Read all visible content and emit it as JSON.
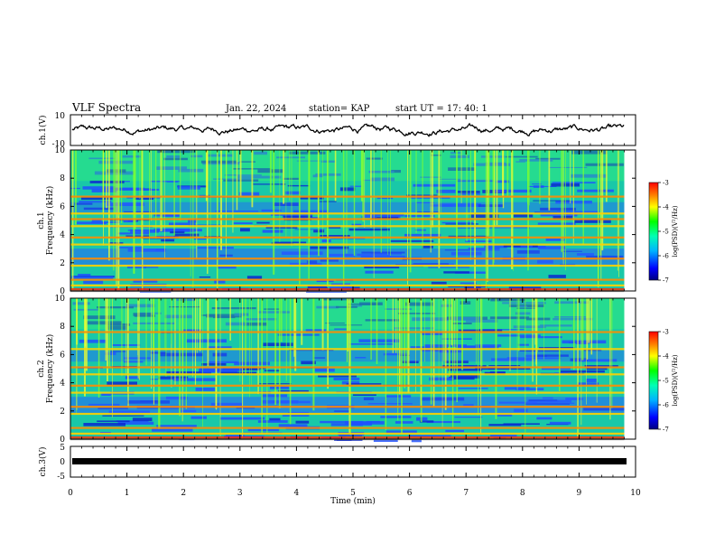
{
  "header": {
    "title": "VLF Spectra",
    "date": "Jan. 22, 2024",
    "station": "station= KAP",
    "start_time": "start  UT  =   17: 40: 1"
  },
  "chart_data": [
    {
      "type": "line",
      "panel": "ch1-waveform",
      "ylabel": "ch.1(V)",
      "ylim": [
        -10,
        10
      ],
      "yticks": [
        "10",
        "-10"
      ],
      "x_range_min": [
        0,
        9.8
      ],
      "line_color": "#000000",
      "approx_mean_v": 0.3,
      "approx_amplitude_v": 4
    },
    {
      "type": "heatmap",
      "panel": "ch1-spectrogram",
      "ylabel": "ch.1\nFrequency (kHz)",
      "ylim": [
        0,
        10
      ],
      "yticks": [
        "0",
        "2",
        "4",
        "6",
        "8",
        "10"
      ],
      "x_range_min": [
        0,
        9.8
      ],
      "colorbar": {
        "label": "log(PSD)(V²/Hz)",
        "range": [
          -7,
          -3
        ],
        "ticks": [
          "-3",
          "-4",
          "-5",
          "-6",
          "-7"
        ]
      },
      "bands_khz": [
        0.4,
        0.8,
        1.8,
        2.3,
        3.3,
        3.8,
        4.6,
        5.1,
        5.5,
        6.7
      ]
    },
    {
      "type": "heatmap",
      "panel": "ch2-spectrogram",
      "ylabel": "ch.2\nFrequency (kHz)",
      "ylim": [
        0,
        10
      ],
      "yticks": [
        "0",
        "2",
        "4",
        "6",
        "8",
        "10"
      ],
      "x_range_min": [
        0,
        9.8
      ],
      "colorbar": {
        "label": "log(PSD)(V²/Hz)",
        "range": [
          -7,
          -3
        ],
        "ticks": [
          "-3",
          "-4",
          "-5",
          "-6",
          "-7"
        ]
      },
      "bands_khz": [
        0.4,
        0.8,
        1.8,
        2.3,
        3.3,
        3.8,
        4.6,
        5.1,
        6.4,
        7.6
      ]
    },
    {
      "type": "line",
      "panel": "ch3-waveform",
      "ylabel": "ch.3(V)",
      "ylim": [
        -5,
        5
      ],
      "yticks": [
        "5",
        "0",
        "-5"
      ],
      "x_range_min": [
        0,
        9.8
      ],
      "value_v": 0,
      "line_color": "#000000"
    }
  ],
  "x_axis": {
    "label": "Time (min)",
    "range": [
      0,
      10
    ],
    "ticks": [
      "0",
      "1",
      "2",
      "3",
      "4",
      "5",
      "6",
      "7",
      "8",
      "9",
      "10"
    ]
  }
}
